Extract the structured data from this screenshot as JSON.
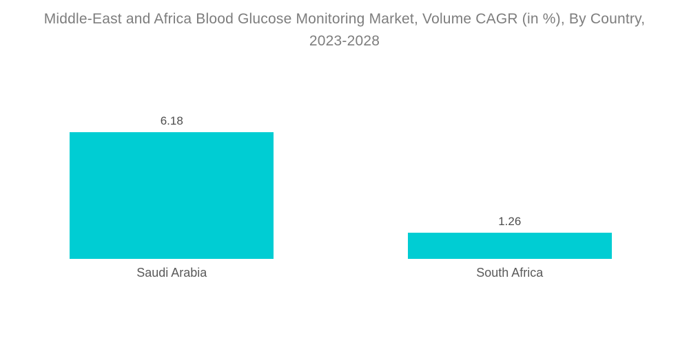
{
  "chart_data": {
    "type": "bar",
    "orientation": "vertical",
    "title": "Middle-East and Africa Blood Glucose Monitoring Market, Volume CAGR (in %), By Country, 2023-2028",
    "title_lines": [
      "Middle-East and Africa Blood Glucose Monitoring Market, Volume CAGR (in %), By Country,",
      "2023-2028"
    ],
    "categories": [
      "Saudi Arabia",
      "South Africa"
    ],
    "values": [
      6.18,
      1.26
    ],
    "value_labels": [
      "6.18",
      "1.26"
    ],
    "xlabel": "",
    "ylabel": "",
    "ylim": [
      0,
      6.18
    ],
    "grid": false,
    "legend": false,
    "axes_visible": false,
    "colors": {
      "bar": "#00CDD3",
      "title_text": "#7d7d7d",
      "value_text": "#4d4d4d",
      "category_text": "#595959",
      "background": "#ffffff"
    }
  }
}
